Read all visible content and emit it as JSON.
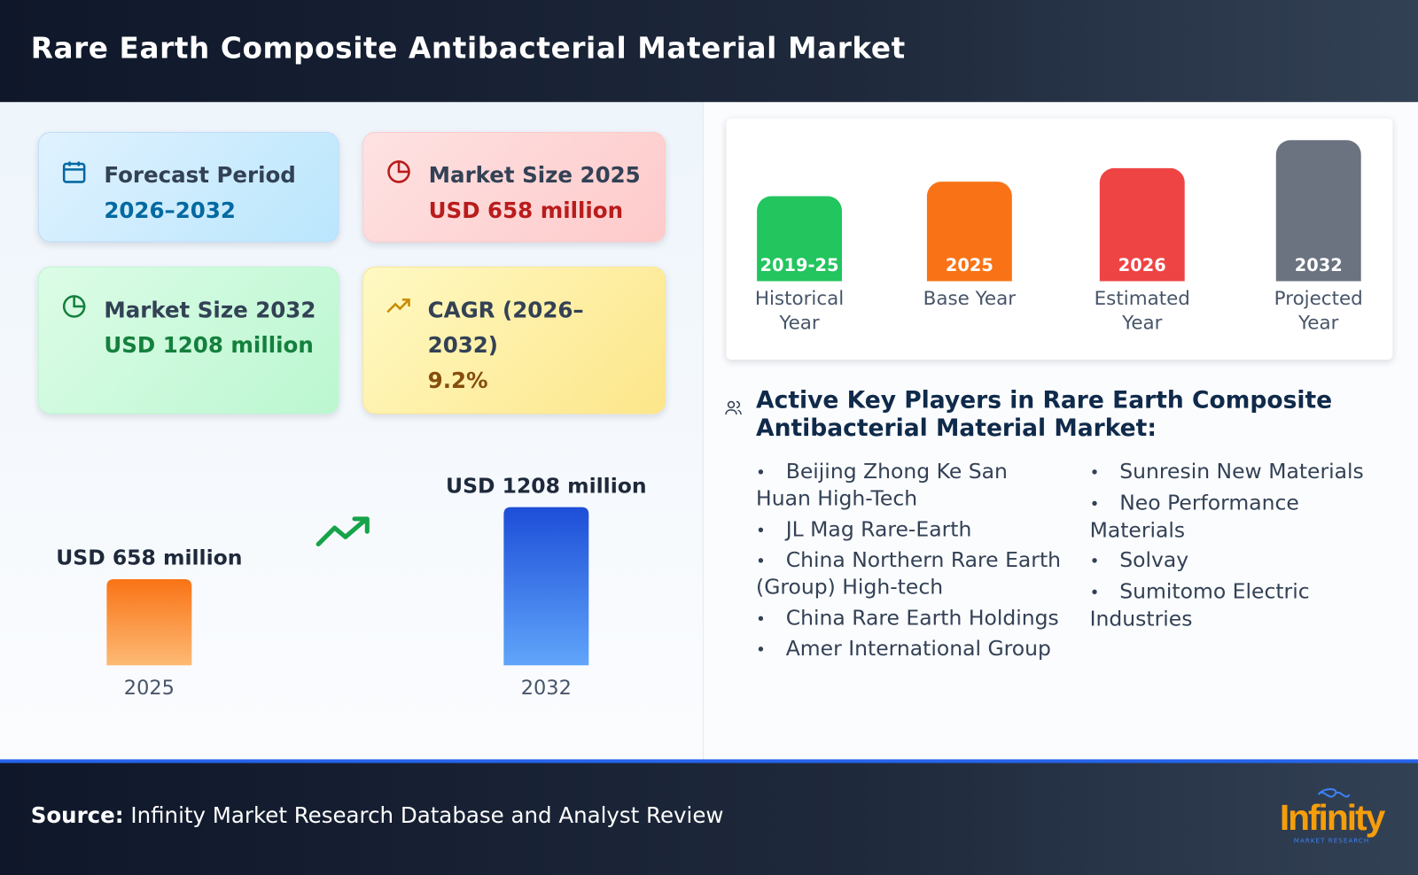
{
  "header": {
    "title": "Rare Earth Composite Antibacterial Material Market"
  },
  "cards": [
    {
      "label": "Forecast Period",
      "value": "2026–2032"
    },
    {
      "label": "Market Size 2025",
      "value": "USD 658 million"
    },
    {
      "label": "Market Size 2032",
      "value": "USD 1208 million"
    },
    {
      "label": "CAGR (2026–2032)",
      "value": "9.2%"
    }
  ],
  "chart_data": {
    "type": "bar",
    "categories": [
      "2025",
      "2032"
    ],
    "values": [
      658,
      1208
    ],
    "value_labels": [
      "USD 658 million",
      "USD 1208 million"
    ],
    "colors": [
      [
        "#f97316",
        "#fdba74"
      ],
      [
        "#1d4ed8",
        "#60a5fa"
      ]
    ]
  },
  "timeline": [
    {
      "year": "2019-25",
      "label": "Historical Year",
      "color": "#22c55e"
    },
    {
      "year": "2025",
      "label": "Base Year",
      "color": "#f97316"
    },
    {
      "year": "2026",
      "label": "Estimated Year",
      "color": "#ef4444"
    },
    {
      "year": "2032",
      "label": "Projected Year",
      "color": "#6b7280"
    }
  ],
  "players": {
    "title": "Active Key Players in Rare Earth Composite Antibacterial Material Market:",
    "items": [
      "Beijing Zhong Ke San Huan High-Tech",
      "JL Mag Rare-Earth",
      "China Northern Rare Earth (Group) High-tech",
      "China Rare Earth Holdings",
      "Amer International Group",
      "Sunresin New Materials",
      "Neo Performance Materials",
      "Solvay",
      "Sumitomo Electric Industries"
    ]
  },
  "footer": {
    "source_label": "Source:",
    "source": "Infinity Market Research Database and Analyst Review"
  },
  "logo": {
    "name": "Infinity",
    "tagline": "MARKET RESEARCH"
  }
}
